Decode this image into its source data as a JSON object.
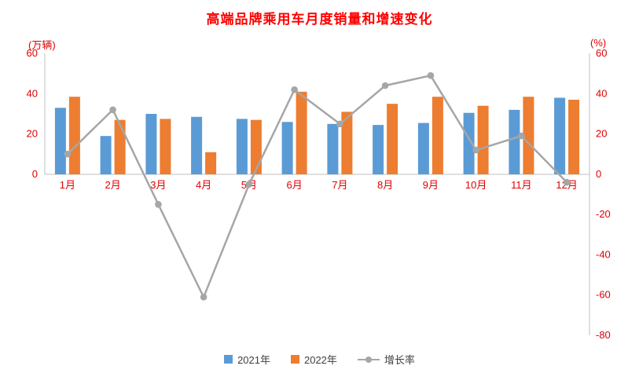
{
  "chart_data": {
    "type": "bar",
    "title": "高端品牌乘用车月度销量和增速变化",
    "left_axis": {
      "unit_label": "(万辆)",
      "min": 0,
      "max": 60,
      "ticks": [
        0,
        20,
        40,
        60
      ]
    },
    "right_axis": {
      "unit_label": "(%)",
      "min": -80,
      "max": 60,
      "ticks": [
        -80,
        -60,
        -40,
        -20,
        0,
        20,
        40,
        60
      ]
    },
    "categories": [
      "1月",
      "2月",
      "3月",
      "4月",
      "5月",
      "6月",
      "7月",
      "8月",
      "9月",
      "10月",
      "11月",
      "12月"
    ],
    "series": [
      {
        "name": "2021年",
        "type": "bar",
        "axis": "left",
        "color": "#5B9BD5",
        "values": [
          33,
          19,
          30,
          28.5,
          27.5,
          26,
          25,
          24.5,
          25.5,
          30.5,
          32,
          38
        ]
      },
      {
        "name": "2022年",
        "type": "bar",
        "axis": "left",
        "color": "#ED7D31",
        "values": [
          38.5,
          27,
          27.5,
          11,
          27,
          41,
          31,
          35,
          38.5,
          34,
          38.5,
          37
        ]
      },
      {
        "name": "增长率",
        "type": "line",
        "axis": "right",
        "color": "#A6A6A6",
        "values": [
          10,
          32,
          -15,
          -61,
          -5,
          42,
          25,
          44,
          49,
          12,
          19,
          -4
        ]
      }
    ],
    "colors": {
      "title": "#FF0000",
      "tick_labels": "#E00000",
      "axis_line": "#BFBFBF",
      "legend_text": "#3F3F3F"
    },
    "layout": {
      "legend_position": "bottom",
      "grid": "off"
    }
  }
}
